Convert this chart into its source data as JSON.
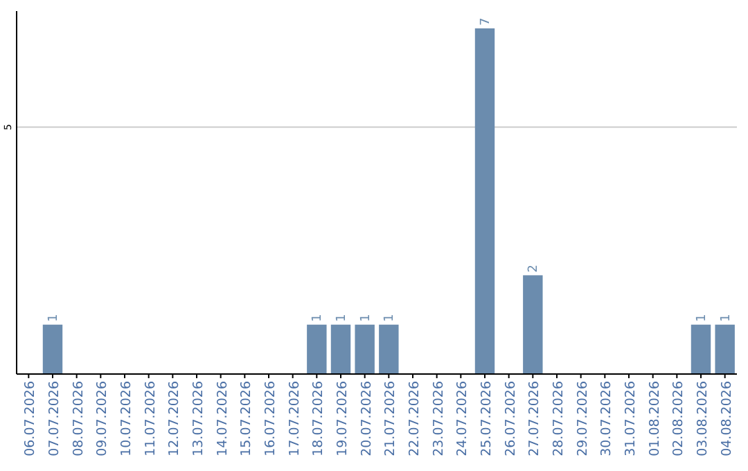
{
  "chart_data": {
    "type": "bar",
    "categories": [
      "06.07.2026",
      "07.07.2026",
      "08.07.2026",
      "09.07.2026",
      "10.07.2026",
      "11.07.2026",
      "12.07.2026",
      "13.07.2026",
      "14.07.2026",
      "15.07.2026",
      "16.07.2026",
      "17.07.2026",
      "18.07.2026",
      "19.07.2026",
      "20.07.2026",
      "21.07.2026",
      "22.07.2026",
      "23.07.2026",
      "24.07.2026",
      "25.07.2026",
      "26.07.2026",
      "27.07.2026",
      "28.07.2026",
      "29.07.2026",
      "30.07.2026",
      "31.07.2026",
      "01.08.2026",
      "02.08.2026",
      "03.08.2026",
      "04.08.2026"
    ],
    "values": [
      0,
      1,
      0,
      0,
      0,
      0,
      0,
      0,
      0,
      0,
      0,
      0,
      1,
      1,
      1,
      1,
      0,
      0,
      0,
      7,
      0,
      2,
      0,
      0,
      0,
      0,
      0,
      0,
      1,
      1
    ],
    "value_labels": [
      null,
      "1",
      null,
      null,
      null,
      null,
      null,
      null,
      null,
      null,
      null,
      null,
      "1",
      "1",
      "1",
      "1",
      null,
      null,
      null,
      "7",
      null,
      "2",
      null,
      null,
      null,
      null,
      null,
      null,
      "1",
      "1"
    ],
    "color": "#6b8cae",
    "ylim": [
      0,
      7.0
    ],
    "yticks": [
      5
    ],
    "grid": "y"
  }
}
